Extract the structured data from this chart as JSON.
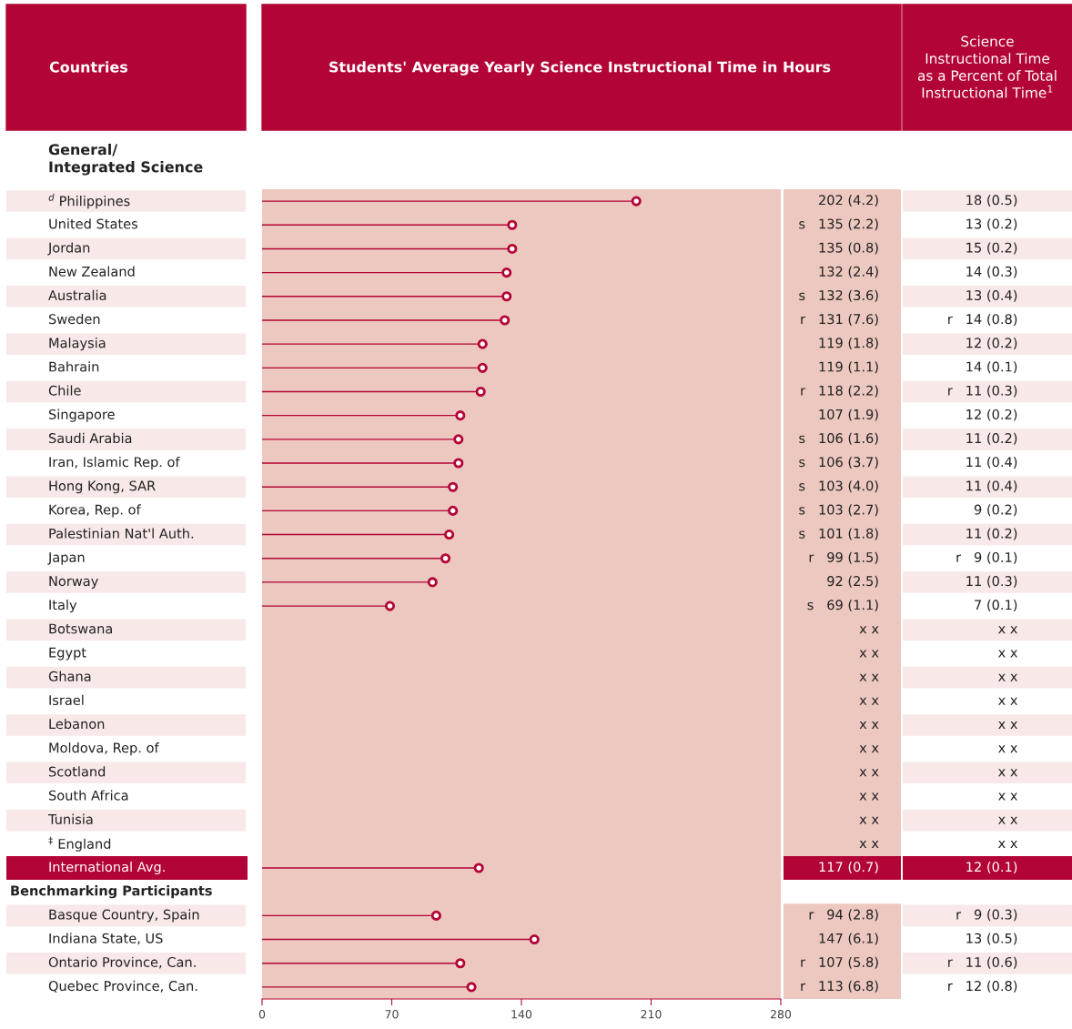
{
  "chart_data": [
    {
      "type": "lollipop",
      "orientation": "horizontal",
      "title": "Students' Average Yearly Science Instructional Time in Hours",
      "ylabel": "Countries",
      "color": "#b30535",
      "marker": "circle",
      "grid": false,
      "categories": [
        "$^{d}$ Philippines",
        "United States",
        "Jordan",
        "New Zealand",
        "Australia",
        "Sweden",
        "Malaysia",
        "Bahrain",
        "Chile",
        "Singapore",
        "Saudi Arabia",
        "Iran, Islamic Rep. of",
        "Hong Kong, SAR",
        "Korea, Rep. of",
        "Palestinian Nat'l Auth.",
        "Japan",
        "Norway",
        "Italy",
        "Botswana",
        "Egypt",
        "Ghana",
        "Israel",
        "Lebanon",
        "Moldova, Rep. of",
        "Scotland",
        "South Africa",
        "Tunisia",
        "$^{‡}$ England",
        "International Avg.",
        null,
        "Basque Country, Spain",
        "Indiana State, US",
        "Ontario Province, Can.",
        "Quebec Province, Can."
      ],
      "values": [
        202,
        135,
        135,
        132,
        132,
        131,
        119,
        119,
        118,
        107,
        106,
        106,
        103,
        103,
        101,
        99,
        92,
        69,
        null,
        null,
        null,
        null,
        null,
        null,
        null,
        null,
        null,
        null,
        117,
        null,
        94,
        147,
        107,
        113
      ],
      "value_labels": [
        "202 (4.2)",
        "s   135 (2.2)",
        "135 (0.8)",
        "132 (2.4)",
        "s   132 (3.6)",
        "r   131 (7.6)",
        "119 (1.8)",
        "119 (1.1)",
        "r   118 (2.2)",
        "107 (1.9)",
        "s   106 (1.6)",
        "s   106 (3.7)",
        "s   103 (4.0)",
        "s   103 (2.7)",
        "s   101 (1.8)",
        "r   99 (1.5)",
        "92 (2.5)",
        "s   69 (1.1)",
        "x x",
        "x x",
        "x x",
        "x x",
        "x x",
        "x x",
        "x x",
        "x x",
        "x x",
        "x x",
        "117 (0.7)",
        null,
        "r   94 (2.8)",
        "147 (6.1)",
        "r   107 (5.8)",
        "r   113 (6.8)"
      ],
      "xlim": [
        0,
        280
      ],
      "xticks": [
        0,
        70,
        140,
        210,
        280
      ],
      "annotations": [
        "General/\nIntegrated Science",
        "Benchmarking Participants"
      ]
    },
    {
      "type": "other",
      "title": "Science\nInstructional Time\nas a Percent of Total\nInstructional Time$^{1}$",
      "value_labels": [
        "18 (0.5)",
        "13 (0.2)",
        "15 (0.2)",
        "14 (0.3)",
        "13 (0.4)",
        "r   14 (0.8)",
        "12 (0.2)",
        "14 (0.1)",
        "r   11 (0.3)",
        "12 (0.2)",
        "11 (0.2)",
        "11 (0.4)",
        "11 (0.4)",
        "9 (0.2)",
        "11 (0.2)",
        "r   9 (0.1)",
        "11 (0.3)",
        "7 (0.1)",
        "x x",
        "x x",
        "x x",
        "x x",
        "x x",
        "x x",
        "x x",
        "x x",
        "x x",
        "x x",
        "12 (0.1)",
        null,
        "r   9 (0.3)",
        "13 (0.5)",
        "r   11 (0.6)",
        "r   12 (0.8)"
      ]
    }
  ]
}
